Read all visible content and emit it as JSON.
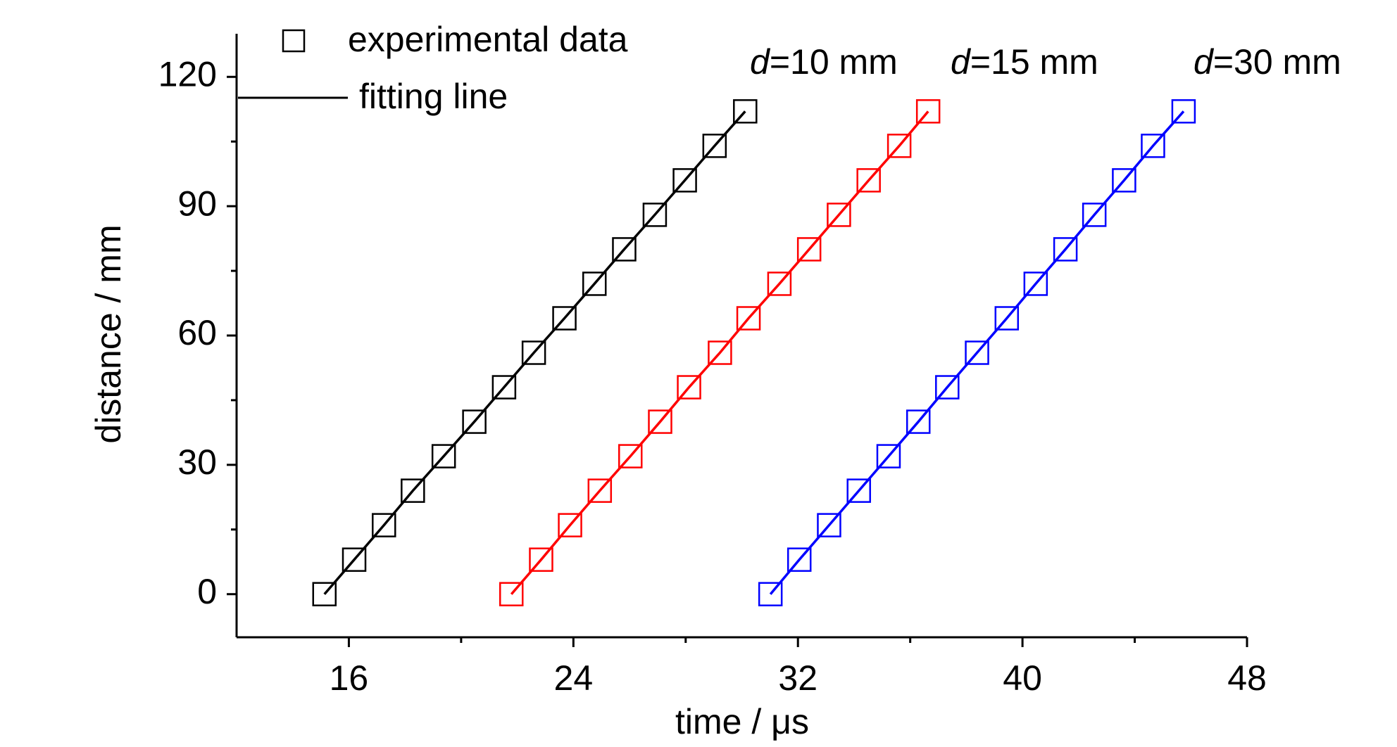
{
  "chart_data": {
    "type": "line",
    "xlabel": "time / μs",
    "ylabel": "distance / mm",
    "xlim": [
      12,
      48
    ],
    "ylim": [
      -10,
      130
    ],
    "xticks": [
      16,
      24,
      32,
      40,
      48
    ],
    "yticks": [
      0,
      30,
      60,
      90,
      120
    ],
    "xminor": [
      20,
      28,
      36,
      44
    ],
    "yminor": [
      15,
      45,
      75,
      105
    ],
    "legend": {
      "marker": "experimental data",
      "line": "fitting line"
    },
    "series": [
      {
        "name": "d=10 mm",
        "color": "#000000",
        "x": [
          15.13,
          16.19,
          17.25,
          18.28,
          19.38,
          20.47,
          21.53,
          22.59,
          23.68,
          24.75,
          25.81,
          26.9,
          27.97,
          29.03,
          30.12
        ],
        "values": [
          0,
          8,
          16,
          24,
          32,
          40,
          48,
          56,
          64,
          72,
          80,
          88,
          96,
          104,
          112
        ]
      },
      {
        "name": "d=15 mm",
        "color": "#ff0000",
        "x": [
          21.79,
          22.85,
          23.88,
          24.94,
          26.03,
          27.09,
          28.12,
          29.22,
          30.24,
          31.34,
          32.4,
          33.46,
          34.52,
          35.61,
          36.64
        ],
        "values": [
          0,
          8,
          16,
          24,
          32,
          40,
          48,
          56,
          64,
          72,
          80,
          88,
          96,
          104,
          112
        ]
      },
      {
        "name": "d=30 mm",
        "color": "#0000ff",
        "x": [
          31.02,
          32.05,
          33.11,
          34.17,
          35.23,
          36.29,
          37.32,
          38.38,
          39.44,
          40.47,
          41.53,
          42.56,
          43.62,
          44.65,
          45.74
        ],
        "values": [
          0,
          8,
          16,
          24,
          32,
          40,
          48,
          56,
          64,
          72,
          80,
          88,
          96,
          104,
          112
        ]
      }
    ]
  }
}
